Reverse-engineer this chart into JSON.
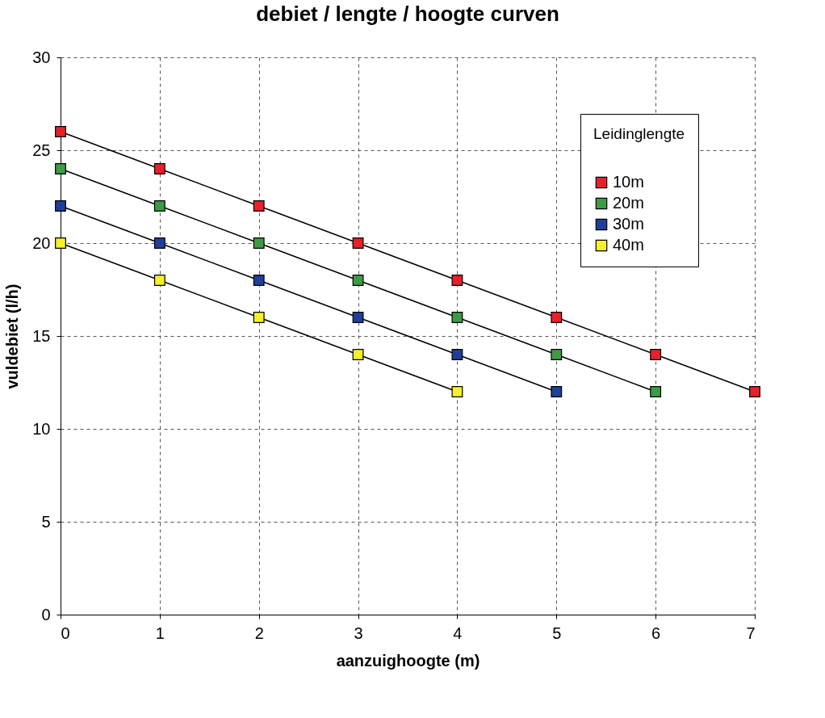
{
  "chart_data": {
    "type": "line",
    "title": "debiet / lengte / hoogte curven",
    "xlabel": "aanzuighoogte (m)",
    "ylabel": "vuldebiet (l/h)",
    "legend_title": "Leidinglengte",
    "series": [
      {
        "name": "10m",
        "color": "#e8202a",
        "x": [
          0,
          1,
          2,
          3,
          4,
          5,
          6,
          7
        ],
        "values": [
          26,
          24,
          22,
          20,
          18,
          16,
          14,
          12
        ]
      },
      {
        "name": "20m",
        "color": "#3f9a48",
        "x": [
          0,
          1,
          2,
          3,
          4,
          5,
          6
        ],
        "values": [
          24,
          22,
          20,
          18,
          16,
          14,
          12
        ]
      },
      {
        "name": "30m",
        "color": "#1f3f9a",
        "x": [
          0,
          1,
          2,
          3,
          4,
          5
        ],
        "values": [
          22,
          20,
          18,
          16,
          14,
          12
        ]
      },
      {
        "name": "40m",
        "color": "#f5f02a",
        "x": [
          0,
          1,
          2,
          3,
          4
        ],
        "values": [
          20,
          18,
          16,
          14,
          12
        ]
      }
    ],
    "xlim": [
      0,
      7
    ],
    "xticks": [
      0,
      1,
      2,
      3,
      4,
      5,
      6,
      7
    ],
    "ylim": [
      0,
      30
    ],
    "yticks": [
      0,
      5,
      10,
      15,
      20,
      25,
      30
    ],
    "grid": true,
    "legend": "top right",
    "marker": "square",
    "line_style": "solid"
  }
}
